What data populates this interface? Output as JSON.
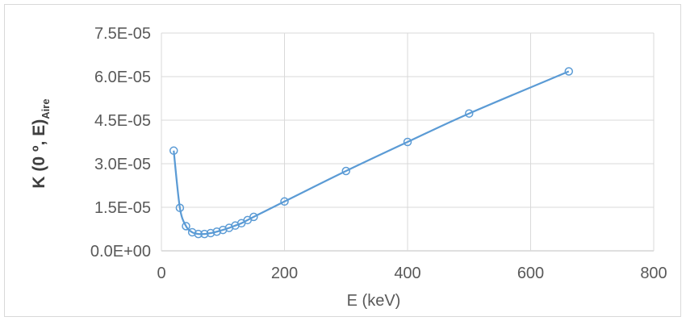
{
  "chart_data": {
    "type": "scatter",
    "title": "",
    "xlabel": "E (keV)",
    "ylabel": {
      "main": "K (0 º, E)",
      "subscript": "Aire"
    },
    "xlim": [
      0,
      800
    ],
    "ylim": [
      0,
      7.5e-05
    ],
    "x_ticks": [
      0,
      200,
      400,
      600,
      800
    ],
    "x_tick_labels": [
      "0",
      "200",
      "400",
      "600",
      "800"
    ],
    "y_ticks": [
      0,
      1.5e-05,
      3e-05,
      4.5e-05,
      6e-05,
      7.5e-05
    ],
    "y_tick_labels": [
      "0.0E+00",
      "1.5E-05",
      "3.0E-05",
      "4.5E-05",
      "6.0E-05",
      "7.5E-05"
    ],
    "grid": true,
    "legend": false,
    "series": [
      {
        "color": "#5b9bd5",
        "marker": "open-circle",
        "line": "smooth",
        "x": [
          20,
          30,
          40,
          50,
          60,
          70,
          80,
          90,
          100,
          110,
          120,
          130,
          140,
          150,
          200,
          300,
          400,
          500,
          662
        ],
        "y": [
          3.45e-05,
          1.48e-05,
          8.5e-06,
          6.4e-06,
          5.8e-06,
          5.8e-06,
          6.1e-06,
          6.6e-06,
          7.2e-06,
          7.9e-06,
          8.7e-06,
          9.5e-06,
          1.06e-05,
          1.17e-05,
          1.7e-05,
          2.75e-05,
          3.75e-05,
          4.73e-05,
          6.18e-05
        ]
      }
    ]
  }
}
